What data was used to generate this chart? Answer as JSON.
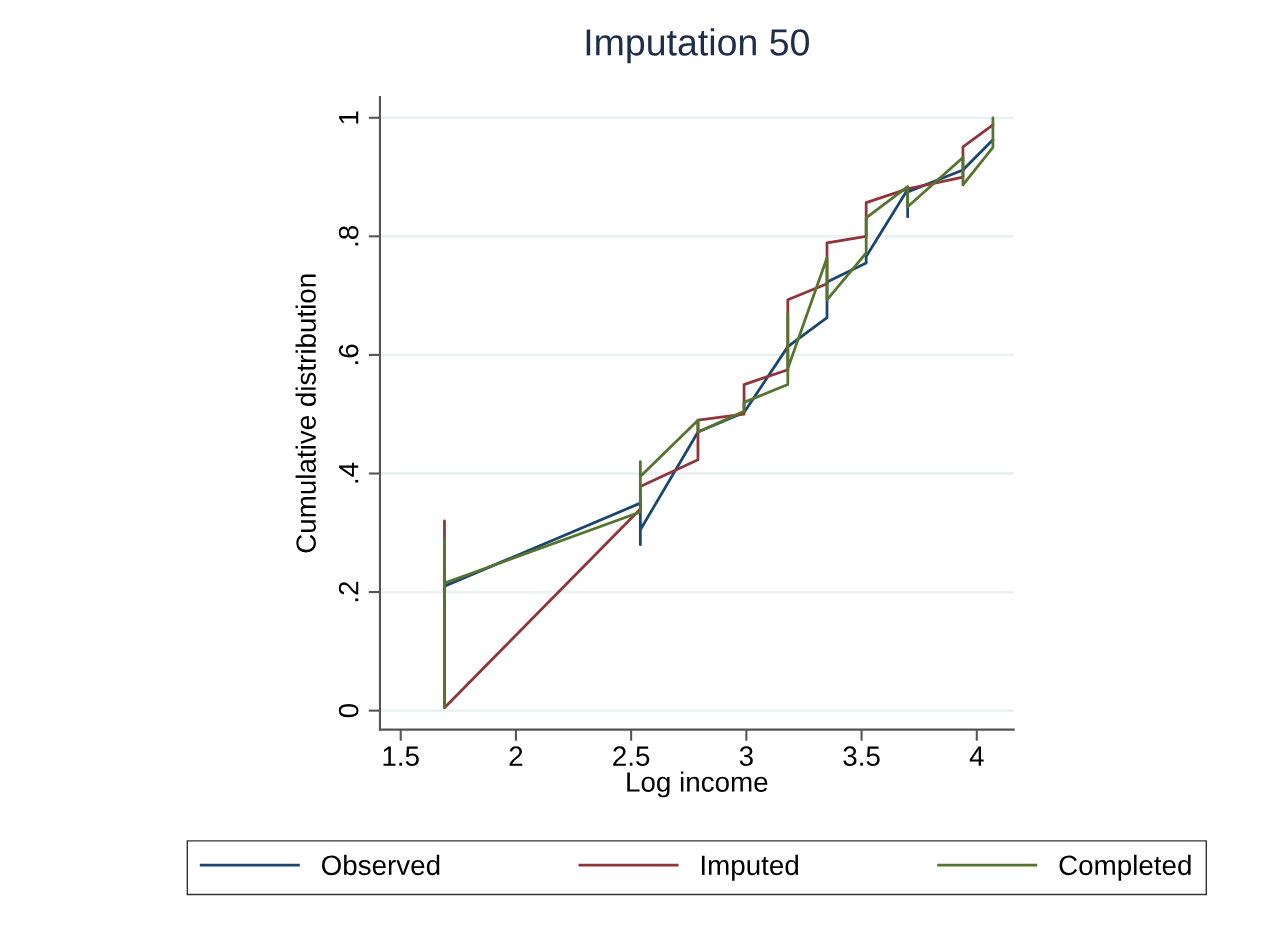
{
  "chart_data": {
    "type": "line",
    "title": "Imputation 50",
    "xlabel": "Log income",
    "ylabel": "Cumulative distribution",
    "xlim": [
      1.41,
      4.16
    ],
    "ylim": [
      -0.032,
      1.035
    ],
    "xticks": [
      1.5,
      2,
      2.5,
      3,
      3.5,
      4
    ],
    "yticks": [
      {
        "value": 0,
        "label": "0"
      },
      {
        "value": 0.2,
        "label": ".2"
      },
      {
        "value": 0.4,
        "label": ".4"
      },
      {
        "value": 0.6,
        "label": ".6"
      },
      {
        "value": 0.8,
        "label": ".8"
      },
      {
        "value": 1,
        "label": "1"
      }
    ],
    "grid": "y",
    "legend": "bottom",
    "line_style": "solid",
    "marker": "none",
    "series": [
      {
        "name": "Observed",
        "color": "#1a476f",
        "x": [
          1.69,
          1.69,
          2.54,
          2.54,
          2.54,
          2.79,
          2.99,
          3.18,
          3.35,
          3.35,
          3.52,
          3.52,
          3.7,
          3.7,
          3.7,
          3.94,
          4.07
        ],
        "values": [
          0.01,
          0.21,
          0.35,
          0.28,
          0.305,
          0.47,
          0.503,
          0.614,
          0.663,
          0.723,
          0.755,
          0.766,
          0.879,
          0.833,
          0.875,
          0.912,
          0.963
        ]
      },
      {
        "name": "Imputed",
        "color": "#90353b",
        "x": [
          1.69,
          1.69,
          2.54,
          2.54,
          2.79,
          2.79,
          2.99,
          2.99,
          3.18,
          3.18,
          3.35,
          3.35,
          3.52,
          3.52,
          3.7,
          3.94,
          3.94,
          4.07
        ],
        "values": [
          0.32,
          0.005,
          0.34,
          0.378,
          0.423,
          0.49,
          0.5,
          0.55,
          0.575,
          0.693,
          0.72,
          0.789,
          0.8,
          0.857,
          0.88,
          0.9,
          0.951,
          0.988
        ]
      },
      {
        "name": "Completed",
        "color": "#55752f",
        "x": [
          1.69,
          1.69,
          1.69,
          2.54,
          2.54,
          2.54,
          2.79,
          2.79,
          2.99,
          2.99,
          3.18,
          3.18,
          3.18,
          3.35,
          3.35,
          3.52,
          3.52,
          3.7,
          3.7,
          3.94,
          3.94,
          4.07,
          4.07
        ],
        "values": [
          0.005,
          0.29,
          0.215,
          0.335,
          0.42,
          0.395,
          0.49,
          0.47,
          0.505,
          0.52,
          0.55,
          0.67,
          0.577,
          0.764,
          0.693,
          0.772,
          0.831,
          0.884,
          0.85,
          0.933,
          0.887,
          0.95,
          1.0
        ]
      }
    ]
  }
}
